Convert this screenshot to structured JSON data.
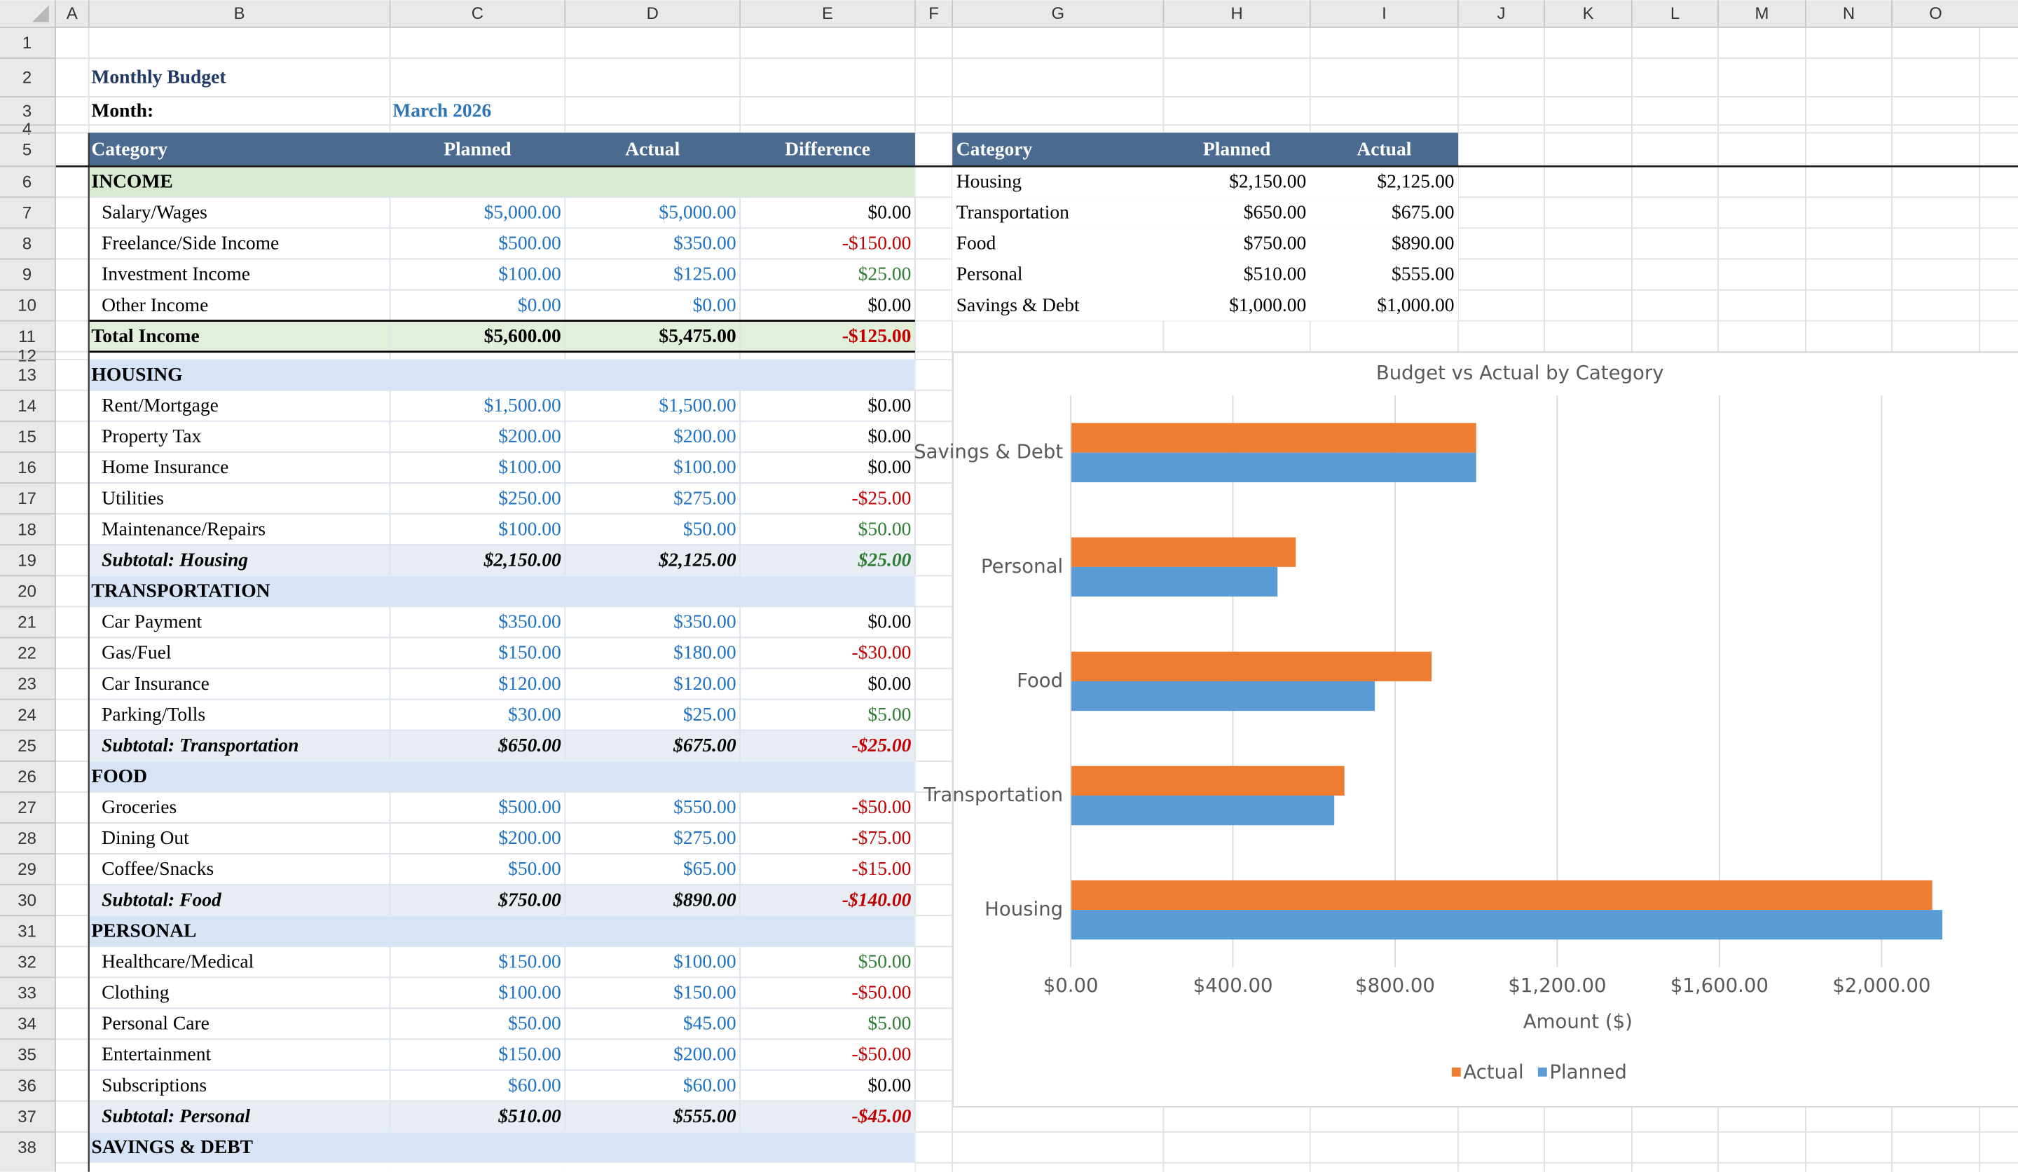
{
  "column_headers": [
    "A",
    "B",
    "C",
    "D",
    "E",
    "F",
    "G",
    "H",
    "I",
    "J",
    "K",
    "L",
    "M",
    "N",
    "O"
  ],
  "row_numbers": [
    1,
    2,
    3,
    4,
    5,
    6,
    7,
    8,
    9,
    10,
    11,
    12,
    13,
    14,
    15,
    16,
    17,
    18,
    19,
    20,
    21,
    22,
    23,
    24,
    25,
    26,
    27,
    28,
    29,
    30,
    31,
    32,
    33,
    34,
    35,
    36,
    37,
    38
  ],
  "title": "Monthly Budget",
  "month_label": "Month:",
  "month_value": "March 2026",
  "budget_table": {
    "header": [
      "Category",
      "Planned",
      "Actual",
      "Difference"
    ],
    "sections": [
      {
        "name": "INCOME",
        "items": [
          [
            "Salary/Wages",
            "$5,000.00",
            "$5,000.00",
            "$0.00"
          ],
          [
            "Freelance/Side Income",
            "$500.00",
            "$350.00",
            "-$150.00"
          ],
          [
            "Investment Income",
            "$100.00",
            "$125.00",
            "$25.00"
          ],
          [
            "Other Income",
            "$0.00",
            "$0.00",
            "$0.00"
          ]
        ],
        "subtotal": [
          "Total Income",
          "$5,600.00",
          "$5,475.00",
          "-$125.00"
        ]
      },
      {
        "name": "HOUSING",
        "items": [
          [
            "Rent/Mortgage",
            "$1,500.00",
            "$1,500.00",
            "$0.00"
          ],
          [
            "Property Tax",
            "$200.00",
            "$200.00",
            "$0.00"
          ],
          [
            "Home Insurance",
            "$100.00",
            "$100.00",
            "$0.00"
          ],
          [
            "Utilities",
            "$250.00",
            "$275.00",
            "-$25.00"
          ],
          [
            "Maintenance/Repairs",
            "$100.00",
            "$50.00",
            "$50.00"
          ]
        ],
        "subtotal": [
          "Subtotal: Housing",
          "$2,150.00",
          "$2,125.00",
          "$25.00"
        ]
      },
      {
        "name": "TRANSPORTATION",
        "items": [
          [
            "Car Payment",
            "$350.00",
            "$350.00",
            "$0.00"
          ],
          [
            "Gas/Fuel",
            "$150.00",
            "$180.00",
            "-$30.00"
          ],
          [
            "Car Insurance",
            "$120.00",
            "$120.00",
            "$0.00"
          ],
          [
            "Parking/Tolls",
            "$30.00",
            "$25.00",
            "$5.00"
          ]
        ],
        "subtotal": [
          "Subtotal: Transportation",
          "$650.00",
          "$675.00",
          "-$25.00"
        ]
      },
      {
        "name": "FOOD",
        "items": [
          [
            "Groceries",
            "$500.00",
            "$550.00",
            "-$50.00"
          ],
          [
            "Dining Out",
            "$200.00",
            "$275.00",
            "-$75.00"
          ],
          [
            "Coffee/Snacks",
            "$50.00",
            "$65.00",
            "-$15.00"
          ]
        ],
        "subtotal": [
          "Subtotal: Food",
          "$750.00",
          "$890.00",
          "-$140.00"
        ]
      },
      {
        "name": "PERSONAL",
        "items": [
          [
            "Healthcare/Medical",
            "$150.00",
            "$100.00",
            "$50.00"
          ],
          [
            "Clothing",
            "$100.00",
            "$150.00",
            "-$50.00"
          ],
          [
            "Personal Care",
            "$50.00",
            "$45.00",
            "$5.00"
          ],
          [
            "Entertainment",
            "$150.00",
            "$200.00",
            "-$50.00"
          ],
          [
            "Subscriptions",
            "$60.00",
            "$60.00",
            "$0.00"
          ]
        ],
        "subtotal": [
          "Subtotal: Personal",
          "$510.00",
          "$555.00",
          "-$45.00"
        ]
      },
      {
        "name": "SAVINGS & DEBT"
      }
    ]
  },
  "summary_table": {
    "header": [
      "Category",
      "Planned",
      "Actual"
    ],
    "rows": [
      [
        "Housing",
        "$2,150.00",
        "$2,125.00"
      ],
      [
        "Transportation",
        "$650.00",
        "$675.00"
      ],
      [
        "Food",
        "$750.00",
        "$890.00"
      ],
      [
        "Personal",
        "$510.00",
        "$555.00"
      ],
      [
        "Savings & Debt",
        "$1,000.00",
        "$1,000.00"
      ]
    ]
  },
  "chart_data": {
    "type": "hbar",
    "title": "Budget vs Actual by Category",
    "x_label": "Amount ($)",
    "categories": [
      "Housing",
      "Transportation",
      "Food",
      "Personal",
      "Savings & Debt"
    ],
    "series": [
      {
        "name": "Actual",
        "color": "#ed7d31",
        "values": [
          2125,
          675,
          890,
          555,
          1000
        ]
      },
      {
        "name": "Planned",
        "color": "#5b9bd5",
        "values": [
          2150,
          650,
          750,
          510,
          1000
        ]
      }
    ],
    "xlim": [
      0,
      2400
    ],
    "xticks": [
      {
        "value": 0,
        "label": "$0.00"
      },
      {
        "value": 400,
        "label": "$400.00"
      },
      {
        "value": 800,
        "label": "$800.00"
      },
      {
        "value": 1200,
        "label": "$1,200.00"
      },
      {
        "value": 1600,
        "label": "$1,600.00"
      },
      {
        "value": 2000,
        "label": "$2,000.00"
      }
    ],
    "grid": true,
    "legend": "bottom"
  }
}
